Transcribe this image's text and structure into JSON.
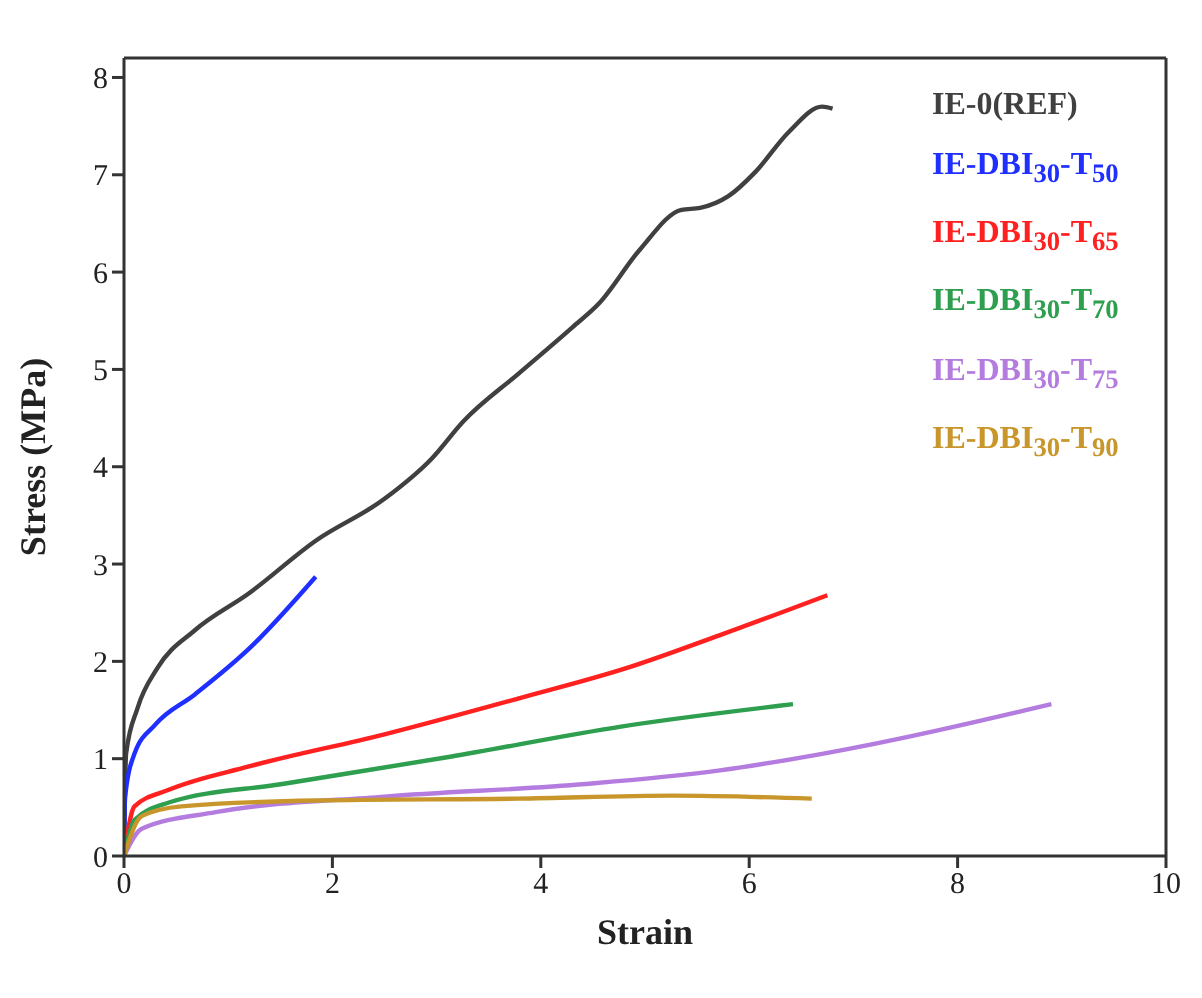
{
  "chart_data": {
    "type": "line",
    "xlabel": "Strain",
    "ylabel": "Stress (MPa)",
    "xlim": [
      0,
      10
    ],
    "ylim": [
      0,
      8.2
    ],
    "xticks": [
      0,
      2,
      4,
      6,
      8,
      10
    ],
    "yticks": [
      0,
      1,
      2,
      3,
      4,
      5,
      6,
      7,
      8
    ],
    "legend": "top right",
    "marker": "none",
    "line_style": "solid",
    "series": [
      {
        "name": "IE-0(REF)",
        "color": "#404040",
        "x": [
          0,
          0.02,
          0.13,
          0.32,
          0.68,
          1.2,
          1.84,
          2.5,
          2.95,
          3.26,
          3.79,
          4.3,
          4.56,
          4.95,
          5.35,
          5.53,
          5.8,
          6.06,
          6.38,
          6.7,
          6.8
        ],
        "values": [
          0,
          1.05,
          1.52,
          1.93,
          2.32,
          2.7,
          3.24,
          3.67,
          4.08,
          4.47,
          4.96,
          5.43,
          5.68,
          6.23,
          6.64,
          6.66,
          6.78,
          7.03,
          7.44,
          7.7,
          7.68
        ]
      },
      {
        "name": "IE-DBI$_{30}$-T$_{50}$",
        "color": "#1f2fff",
        "x": [
          0,
          0.01,
          0.1,
          0.3,
          0.68,
          1.2,
          1.84
        ],
        "values": [
          0,
          0.6,
          1.05,
          1.35,
          1.66,
          2.13,
          2.87
        ]
      },
      {
        "name": "IE-DBI$_{30}$-T$_{65}$",
        "color": "#ff2020",
        "x": [
          0,
          0.1,
          0.43,
          1.2,
          2.5,
          3.79,
          4.82,
          5.72,
          6.75
        ],
        "values": [
          0,
          0.51,
          0.68,
          0.92,
          1.25,
          1.62,
          1.93,
          2.27,
          2.68
        ]
      },
      {
        "name": "IE-DBI$_{30}$-T$_{70}$",
        "color": "#2e9e4f",
        "x": [
          0,
          0.1,
          0.43,
          1.52,
          3.13,
          4.77,
          6.42
        ],
        "values": [
          0,
          0.37,
          0.55,
          0.74,
          1.02,
          1.33,
          1.56
        ]
      },
      {
        "name": "IE-DBI$_{30}$-T$_{75}$",
        "color": "#b57ce0",
        "x": [
          0,
          0.17,
          0.88,
          2.5,
          4.43,
          5.72,
          6.7,
          8.9
        ],
        "values": [
          0,
          0.28,
          0.45,
          0.61,
          0.74,
          0.88,
          1.05,
          1.56
        ]
      },
      {
        "name": "IE-DBI$_{30}$-T$_{90}$",
        "color": "#c8962a",
        "x": [
          0,
          0.17,
          0.55,
          1.84,
          3.79,
          5.27,
          6.6
        ],
        "values": [
          0,
          0.41,
          0.51,
          0.57,
          0.59,
          0.62,
          0.59
        ]
      }
    ]
  }
}
